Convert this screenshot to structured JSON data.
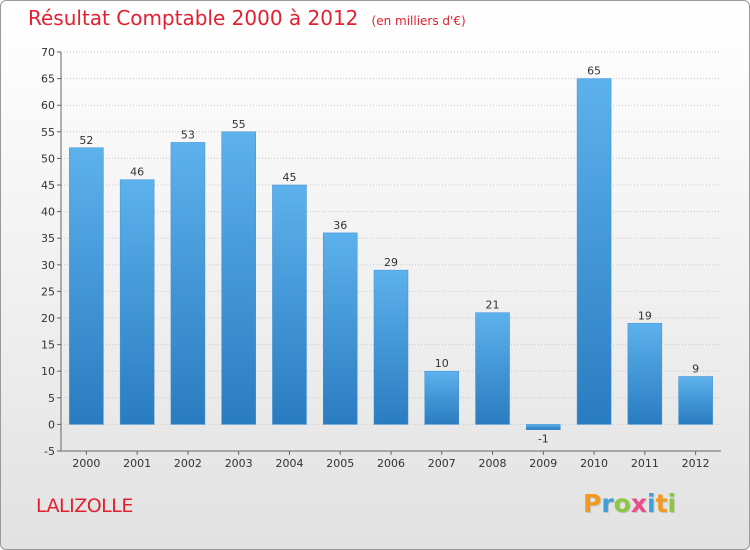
{
  "chart_data": {
    "type": "bar",
    "title": "Résultat Comptable 2000 à 2012",
    "subtitle": "(en milliers d'€)",
    "categories": [
      "2000",
      "2001",
      "2002",
      "2003",
      "2004",
      "2005",
      "2006",
      "2007",
      "2008",
      "2009",
      "2010",
      "2011",
      "2012"
    ],
    "values": [
      52,
      46,
      53,
      55,
      45,
      36,
      29,
      10,
      21,
      -1,
      65,
      19,
      9
    ],
    "ylim": [
      -5,
      70
    ],
    "yticks": [
      -5,
      0,
      5,
      10,
      15,
      20,
      25,
      30,
      35,
      40,
      45,
      50,
      55,
      60,
      65,
      70
    ],
    "grid": true,
    "bar_color": "#4a9fe0"
  },
  "commune": "LALIZOLLE",
  "logo": {
    "text": "Proxiti",
    "colors": [
      "#f39a1e",
      "#3fa0d8",
      "#8dc63f",
      "#e94e8a",
      "#3fa0d8",
      "#f39a1e",
      "#8dc63f"
    ]
  }
}
